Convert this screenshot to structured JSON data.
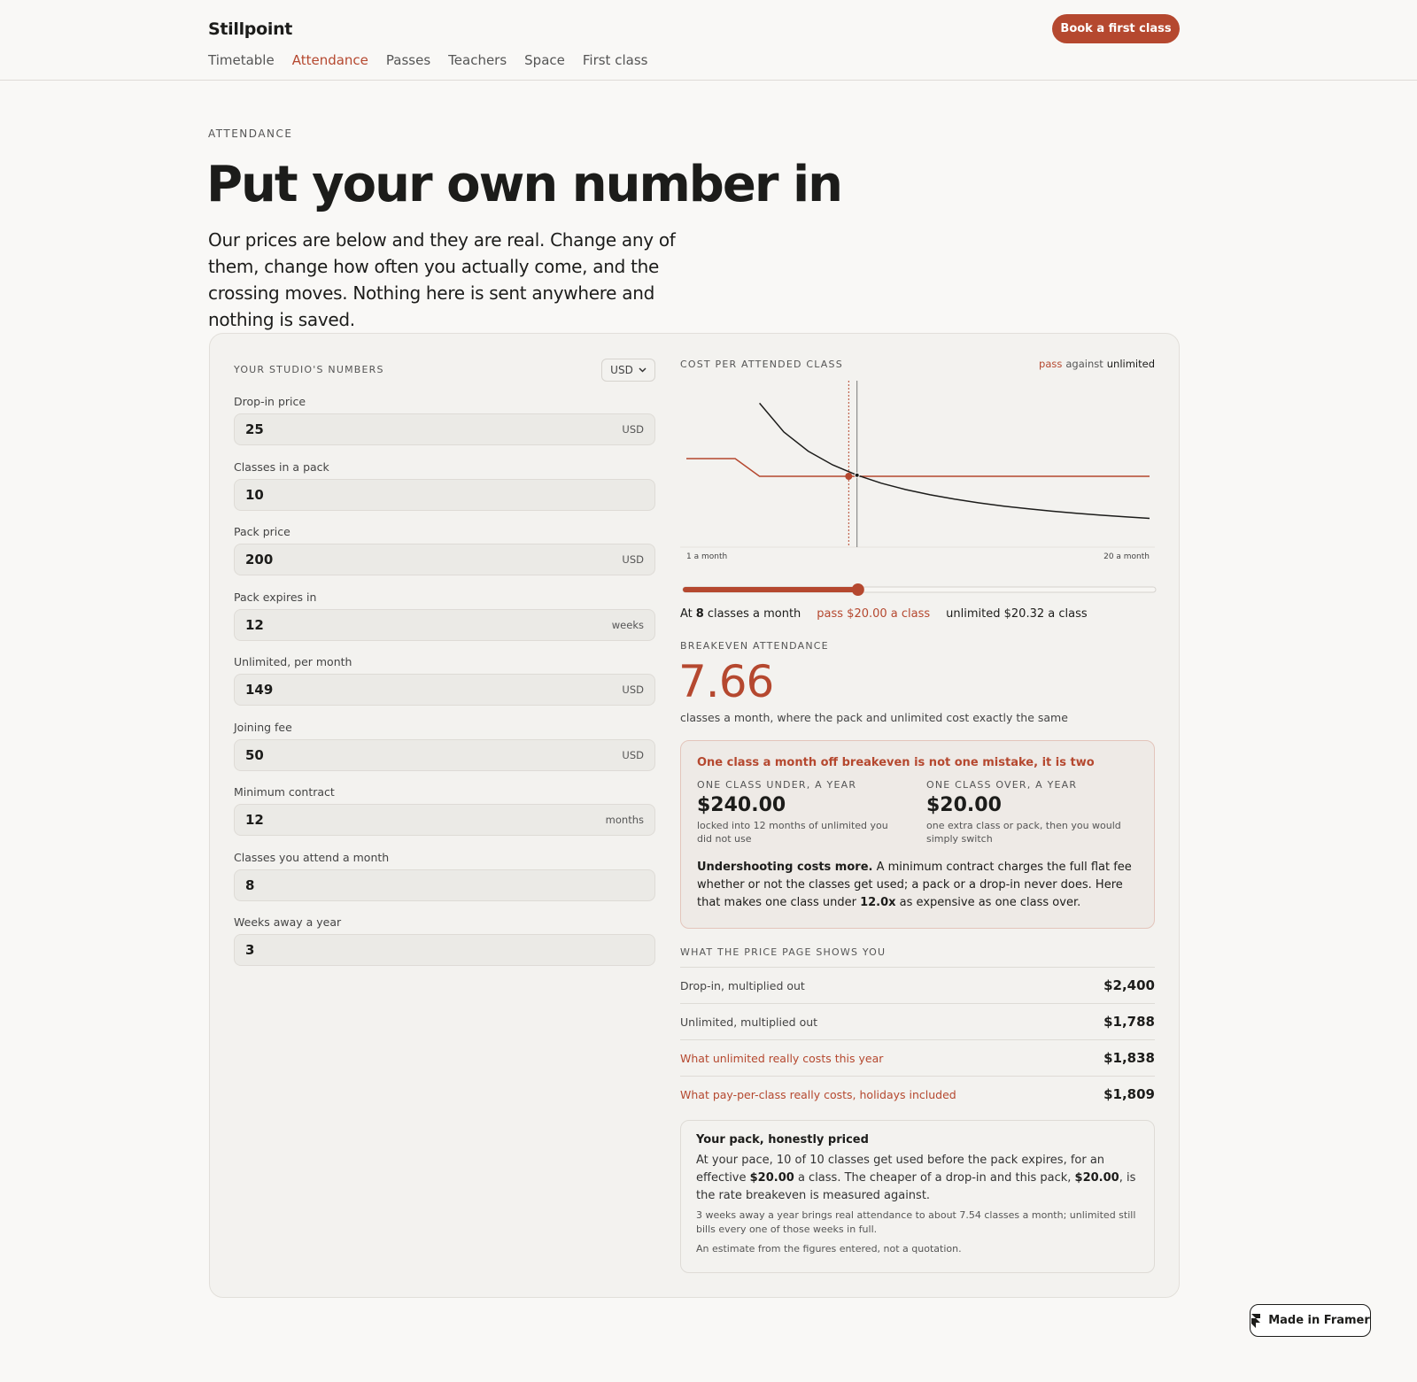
{
  "header": {
    "brand": "Stillpoint",
    "nav": [
      "Timetable",
      "Attendance",
      "Passes",
      "Teachers",
      "Space",
      "First class"
    ],
    "active_nav": 1,
    "cta": "Book a first class"
  },
  "hero": {
    "eyebrow": "ATTENDANCE",
    "title": "Put your own number in",
    "intro": "Our prices are below and they are real. Change any of them, change how often you actually come, and the crossing moves. Nothing here is sent anywhere and nothing is saved."
  },
  "inputs": {
    "heading": "YOUR STUDIO'S NUMBERS",
    "currency": "USD",
    "fields": [
      {
        "label": "Drop-in price",
        "value": 25,
        "unit": "USD"
      },
      {
        "label": "Classes in a pack",
        "value": 10
      },
      {
        "label": "Pack price",
        "value": 200,
        "unit": "USD"
      },
      {
        "label": "Pack expires in",
        "value": 12,
        "unit": "weeks"
      },
      {
        "label": "Unlimited, per month",
        "value": 149,
        "unit": "USD"
      },
      {
        "label": "Joining fee",
        "value": 50,
        "unit": "USD"
      },
      {
        "label": "Minimum contract",
        "value": 12,
        "unit": "months"
      },
      {
        "label": "Classes you attend a month",
        "value": 8
      },
      {
        "label": "Weeks away a year",
        "value": 3
      }
    ]
  },
  "chart": {
    "title": "COST PER ATTENDED CLASS",
    "legend_joiner": "against",
    "xlim": [
      1,
      20
    ],
    "ylim": [
      0,
      45
    ],
    "x": [
      1,
      2,
      3,
      4,
      5,
      6,
      7,
      8,
      9,
      10,
      11,
      12,
      13,
      14,
      15,
      16,
      17,
      18,
      19,
      20
    ],
    "series": [
      {
        "name": "pass",
        "color": "#b5482f",
        "values": [
          25,
          25,
          25,
          20,
          20,
          20,
          20,
          20,
          20,
          20,
          20,
          20,
          20,
          20,
          20,
          20,
          20,
          20,
          20,
          20
        ]
      },
      {
        "name": "unlimited",
        "color": "#1c1c1a",
        "values": [
          null,
          null,
          null,
          40.64,
          32.51,
          27.09,
          23.22,
          20.32,
          18.06,
          16.26,
          14.78,
          13.55,
          12.5,
          11.61,
          10.84,
          10.16,
          9.56,
          9.03,
          8.56,
          8.13
        ]
      }
    ],
    "x_labels": [
      {
        "value": 1,
        "label": "1 a month"
      },
      {
        "value": 20,
        "label": "20 a month"
      }
    ]
  },
  "summary": {
    "prefix": "At",
    "suffix": "classes a month",
    "pass": "pass $20.00 a class",
    "unlimited": "unlimited $20.32 a class"
  },
  "breakeven": {
    "heading": "BREAKEVEN ATTENDANCE",
    "value": 7.66,
    "caption": "classes a month, where the pack and unlimited cost exactly the same"
  },
  "callout": {
    "title": "One class a month off breakeven is not one mistake, it is two",
    "cols": [
      {
        "label": "ONE CLASS UNDER, A YEAR",
        "amount": "$240.00",
        "note": "locked into 12 months of unlimited you did not use"
      },
      {
        "label": "ONE CLASS OVER, A YEAR",
        "amount": "$20.00",
        "note": "one extra class or pack, then you would simply switch"
      }
    ],
    "body": [
      {
        "text": "Undershooting costs more.",
        "bold": true
      },
      {
        "text": " A minimum contract charges the full flat fee whether or not the classes get used; a pack or a drop-in never does. Here that makes one class under "
      },
      {
        "text": "12.0x",
        "bold": true
      },
      {
        "text": " as expensive as one class over."
      }
    ]
  },
  "table": {
    "heading": "WHAT THE PRICE PAGE SHOWS YOU",
    "rows": [
      {
        "label": "Drop-in, multiplied out",
        "value": "$2,400"
      },
      {
        "label": "Unlimited, multiplied out",
        "value": "$1,788"
      },
      {
        "label": "What unlimited really costs this year",
        "value": "$1,838",
        "highlight": true
      },
      {
        "label": "What pay-per-class really costs, holidays included",
        "value": "$1,809",
        "highlight": true
      }
    ]
  },
  "pack": {
    "title": "Your pack, honestly priced",
    "body": [
      {
        "text": "At your pace, 10 of 10 classes get used before the pack expires, for an effective "
      },
      {
        "text": "$20.00",
        "bold": true
      },
      {
        "text": " a class. The cheaper of a drop-in and this pack, "
      },
      {
        "text": "$20.00",
        "bold": true
      },
      {
        "text": ", is the rate breakeven is measured against."
      }
    ],
    "note": "3 weeks away a year brings real attendance to about 7.54 classes a month; unlimited still bills every one of those weeks in full.",
    "disclaimer": "An estimate from the figures entered, not a quotation."
  },
  "badge": "Made in Framer"
}
